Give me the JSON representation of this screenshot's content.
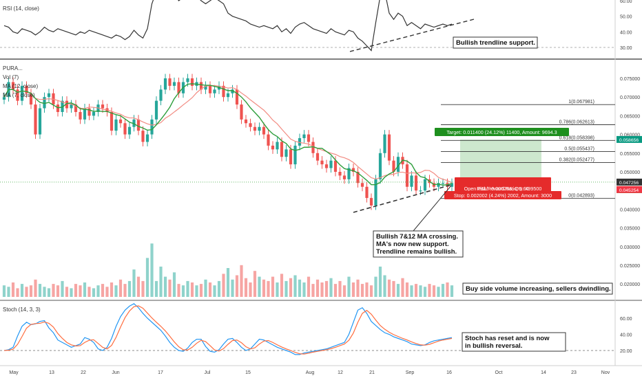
{
  "panels": {
    "rsi_label": "RSI (14, close)",
    "price_labels": [
      "PURA...",
      "Vol (7)",
      "MA (12, close)",
      "MA (7, close)"
    ],
    "stoch_label": "Stoch (14, 3, 3)"
  },
  "rsi_axis": [
    "60.00",
    "50.00",
    "40.00",
    "30.00"
  ],
  "price_axis": [
    "0.075000",
    "0.070000",
    "0.065000",
    "0.060000",
    "0.055000",
    "0.050000",
    "0.045000",
    "0.040000",
    "0.035000",
    "0.030000",
    "0.025000",
    "0.020000"
  ],
  "stoch_axis": [
    "60.00",
    "40.00",
    "20.00"
  ],
  "x_axis": [
    "May",
    "13",
    "22",
    "Jun",
    "17",
    "Jul",
    "15",
    "Aug",
    "12",
    "21",
    "Sep",
    "16",
    "Oct",
    "14",
    "23",
    "Nov"
  ],
  "price_tags": [
    {
      "text": "0.058656",
      "color": "#089981"
    },
    {
      "text": "0.047256",
      "color": "#333333"
    },
    {
      "text": "0.047000",
      "color": "#2eb82e"
    },
    {
      "text": "0.045254",
      "color": "#f23645"
    }
  ],
  "fib_levels": [
    "1(0.067981)",
    "0.786(0.062613)",
    "0.618(0.058398)",
    "0.5(0.055437)",
    "0.382(0.052477)",
    "0(0.042893)"
  ],
  "position": {
    "target": "Target: 0.011400 (24.12%) 11400, Amount: 9694.3",
    "open_pl": "Open P&L: -0.000256, Qty: 499500",
    "risk_reward": "Risk/Reward Ratio: 5.60",
    "stop": "Stop: 0.002002 (4.24%) 2002, Amount: 3000"
  },
  "annotations": {
    "rsi_note": "Bullish trendline support.",
    "ma_note": [
      "Bullish 7&12 MA crossing.",
      "MA's now new support.",
      "Trendline remains bullish."
    ],
    "volume_note": "Buy side volume increasing, sellers dwindling.",
    "stoch_note": [
      "Stoch has reset and is now",
      "in bullish reversal."
    ]
  },
  "colors": {
    "up": "#26a69a",
    "down": "#ef5350",
    "ma7": "#2e9e3c",
    "ma12": "#f28b82",
    "stoch_k": "#2196f3",
    "stoch_d": "#ff6d3f",
    "target_zone": "#c8e6c9",
    "stop_zone": "#ffcdd2"
  },
  "chart_data": {
    "type": "candlestick",
    "title": "PURA...",
    "interval": "1D",
    "x_labels": [
      "May",
      "13",
      "22",
      "Jun",
      "17",
      "Jul",
      "15",
      "Aug",
      "12",
      "21",
      "Sep",
      "16",
      "Oct",
      "14",
      "23",
      "Nov"
    ],
    "ylim": [
      0.018,
      0.078
    ],
    "close": [
      0.07,
      0.074,
      0.072,
      0.069,
      0.073,
      0.071,
      0.068,
      0.06,
      0.067,
      0.07,
      0.071,
      0.068,
      0.066,
      0.069,
      0.067,
      0.068,
      0.066,
      0.064,
      0.067,
      0.065,
      0.066,
      0.068,
      0.067,
      0.066,
      0.061,
      0.064,
      0.063,
      0.06,
      0.062,
      0.064,
      0.061,
      0.058,
      0.06,
      0.064,
      0.069,
      0.072,
      0.075,
      0.073,
      0.074,
      0.071,
      0.074,
      0.075,
      0.073,
      0.074,
      0.072,
      0.073,
      0.071,
      0.072,
      0.073,
      0.07,
      0.071,
      0.072,
      0.068,
      0.064,
      0.063,
      0.062,
      0.061,
      0.062,
      0.06,
      0.057,
      0.056,
      0.058,
      0.054,
      0.056,
      0.052,
      0.057,
      0.059,
      0.06,
      0.058,
      0.055,
      0.053,
      0.052,
      0.051,
      0.053,
      0.05,
      0.049,
      0.048,
      0.051,
      0.05,
      0.047,
      0.046,
      0.043,
      0.041,
      0.048,
      0.055,
      0.06,
      0.053,
      0.05,
      0.054,
      0.052,
      0.046,
      0.049,
      0.045,
      0.045,
      0.048,
      0.047,
      0.046,
      0.047,
      0.047,
      0.046,
      0.047
    ],
    "volume": [
      8,
      7,
      10,
      6,
      9,
      7,
      8,
      12,
      9,
      7,
      6,
      9,
      8,
      11,
      7,
      6,
      9,
      8,
      10,
      7,
      6,
      8,
      9,
      7,
      10,
      8,
      12,
      9,
      11,
      19,
      14,
      11,
      27,
      37,
      11,
      21,
      14,
      12,
      17,
      9,
      8,
      11,
      10,
      8,
      9,
      12,
      10,
      8,
      11,
      16,
      20,
      12,
      15,
      22,
      13,
      10,
      18,
      14,
      12,
      11,
      14,
      10,
      16,
      11,
      13,
      15,
      12,
      10,
      14,
      9,
      12,
      10,
      11,
      13,
      9,
      11,
      8,
      14,
      10,
      12,
      9,
      10,
      8,
      14,
      21,
      15,
      12,
      11,
      9,
      13,
      10,
      8,
      9,
      8,
      7,
      9,
      8,
      7,
      9,
      10,
      8
    ],
    "rsi": [
      44,
      43,
      40,
      39,
      42,
      41,
      40,
      38,
      40,
      43,
      41,
      40,
      42,
      41,
      40,
      39,
      38,
      40,
      39,
      41,
      40,
      39,
      38,
      37,
      36,
      38,
      37,
      35,
      37,
      41,
      38,
      36,
      42,
      58,
      66,
      68,
      70,
      62,
      64,
      60,
      62,
      64,
      61,
      63,
      60,
      58,
      60,
      62,
      60,
      58,
      52,
      50,
      49,
      48,
      47,
      45,
      44,
      43,
      44,
      43,
      42,
      44,
      40,
      42,
      39,
      43,
      45,
      46,
      44,
      42,
      41,
      40,
      39,
      42,
      40,
      39,
      38,
      41,
      40,
      36,
      34,
      31,
      28,
      46,
      63,
      66,
      52,
      48,
      52,
      50,
      44,
      46,
      44,
      42,
      45,
      44,
      43,
      44,
      45,
      44,
      45
    ],
    "stoch_k": [
      20,
      21,
      24,
      38,
      50,
      55,
      52,
      53,
      56,
      57,
      48,
      42,
      33,
      30,
      27,
      24,
      26,
      28,
      36,
      34,
      30,
      22,
      20,
      24,
      35,
      50,
      62,
      70,
      75,
      78,
      73,
      66,
      60,
      55,
      50,
      45,
      38,
      30,
      24,
      20,
      19,
      23,
      30,
      34,
      34,
      25,
      19,
      18,
      21,
      28,
      34,
      35,
      30,
      24,
      20,
      22,
      28,
      34,
      33,
      30,
      27,
      24,
      22,
      20,
      18,
      15,
      15,
      17,
      18,
      19,
      20,
      21,
      22,
      24,
      26,
      28,
      30,
      40,
      55,
      70,
      73,
      66,
      56,
      51,
      46,
      42,
      40,
      37,
      35,
      33,
      31,
      28,
      27,
      26,
      27,
      30,
      32,
      33,
      34,
      35,
      36
    ],
    "ylabel_rsi": "RSI (14, close)",
    "ylabel_stoch": "Stoch (14, 3, 3)"
  }
}
